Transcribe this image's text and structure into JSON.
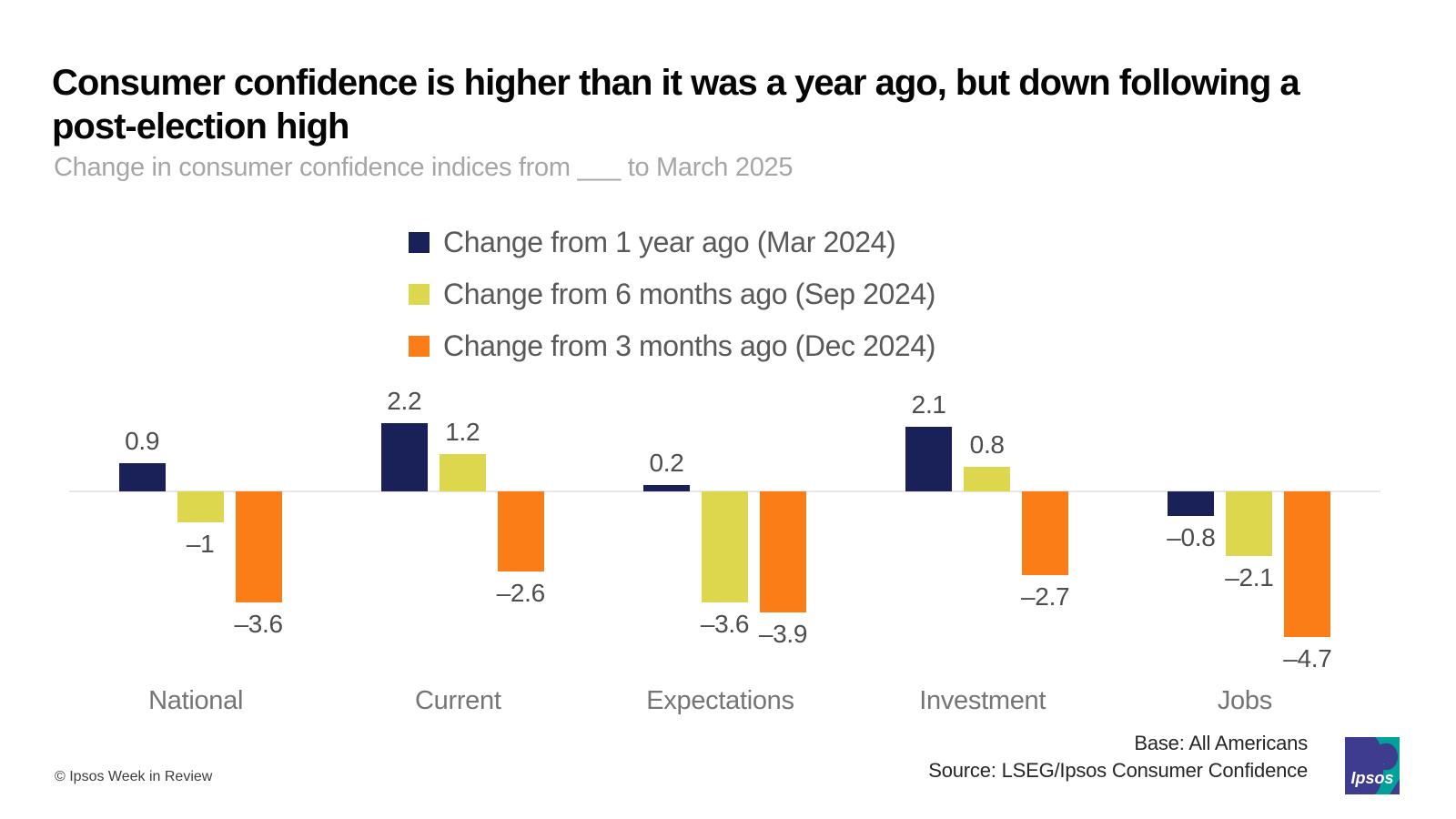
{
  "page": {
    "title": "Consumer confidence is higher than it was a year ago, but down following a post-election high",
    "subtitle": "Change in consumer confidence indices from ___ to March 2025",
    "footer": {
      "copyright": "© Ipsos Week in Review",
      "base": "Base: All Americans",
      "source": "Source: LSEG/Ipsos Consumer Confidence",
      "logo_text": "Ipsos"
    }
  },
  "colors": {
    "series_navy": "#1a2158",
    "series_yellow": "#ddd74e",
    "series_orange": "#fb7d17",
    "axis_line": "#e7e7e7",
    "logo_blue": "#3e3c8e",
    "logo_teal": "#00a19a"
  },
  "chart_data": {
    "type": "bar",
    "title": "Change in consumer confidence indices from ___ to March 2025",
    "categories": [
      "National",
      "Current",
      "Expectations",
      "Investment",
      "Jobs"
    ],
    "series": [
      {
        "name": "Change from 1 year ago (Mar 2024)",
        "color": "#1a2158",
        "values": [
          0.9,
          2.2,
          0.2,
          2.1,
          -0.8
        ]
      },
      {
        "name": "Change from 6 months ago (Sep 2024)",
        "color": "#ddd74e",
        "values": [
          -1,
          1.2,
          -3.6,
          0.8,
          -2.1
        ]
      },
      {
        "name": "Change from 3 months ago (Dec 2024)",
        "color": "#fb7d17",
        "values": [
          -3.6,
          -2.6,
          -3.9,
          -2.7,
          -4.7
        ]
      }
    ],
    "value_labels": [
      [
        "0.9",
        "–1",
        "–3.6"
      ],
      [
        "2.2",
        "1.2",
        "–2.6"
      ],
      [
        "0.2",
        "–3.6",
        "–3.9"
      ],
      [
        "2.1",
        "0.8",
        "–2.7"
      ],
      [
        "–0.8",
        "–2.1",
        "–4.7"
      ]
    ],
    "xlabel": "",
    "ylabel": "",
    "ylim": [
      -5,
      2.5
    ],
    "baseline": 0,
    "grid": false,
    "legend_position": "top-center",
    "value_labels_shown": true
  }
}
